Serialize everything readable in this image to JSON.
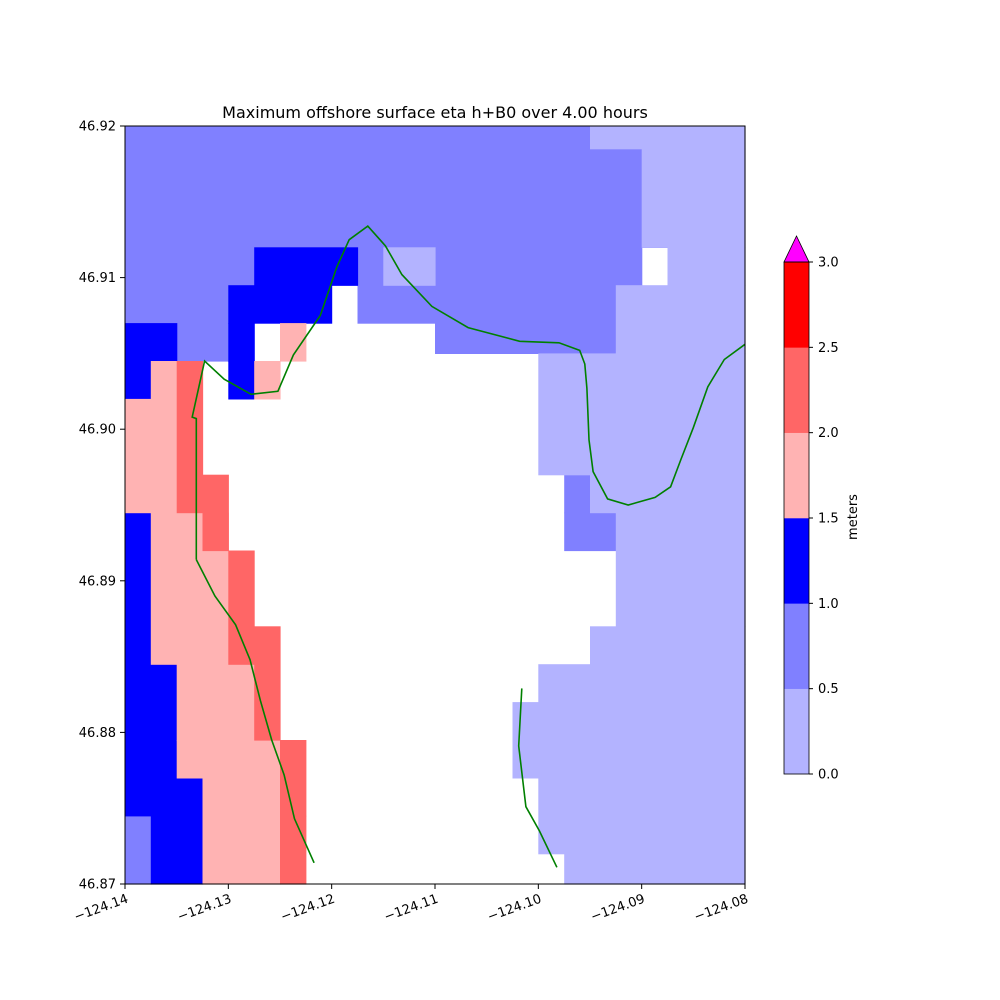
{
  "chart_data": {
    "type": "heatmap",
    "title": "Maximum offshore surface eta h+B0 over 4.00 hours",
    "xlabel": "",
    "ylabel": "",
    "xlim": [
      -124.14,
      -124.08
    ],
    "ylim": [
      46.87,
      46.92
    ],
    "x_ticks": [
      "−124.14",
      "−124.13",
      "−124.12",
      "−124.11",
      "−124.10",
      "−124.09",
      "−124.08"
    ],
    "y_ticks": [
      "46.87",
      "46.88",
      "46.89",
      "46.90",
      "46.91",
      "46.92"
    ],
    "grid": false,
    "colorbar": {
      "label": "meters",
      "ticks": [
        "0.0",
        "0.5",
        "1.0",
        "1.5",
        "2.0",
        "2.5",
        "3.0"
      ],
      "levels": [
        0.0,
        0.5,
        1.0,
        1.5,
        2.0,
        2.5,
        3.0
      ],
      "colors": [
        "#b3b3ff",
        "#8080ff",
        "#0000ff",
        "#ffb3b3",
        "#ff6666",
        "#ff0000"
      ],
      "extend_color": "#ff00ff",
      "extend": "max"
    },
    "coastline_color": "#008000",
    "region_levels": {
      "0": "0.0-0.5",
      "1": "0.5-1.0",
      "2": "1.0-1.5",
      "3": "1.5-2.0",
      "4": "2.0-2.5"
    },
    "regions": [
      {
        "level": 1,
        "rects": [
          [
            -124.14,
            46.9185,
            -124.095,
            46.92
          ],
          [
            -124.14,
            46.917,
            -124.09,
            46.9185
          ],
          [
            -124.14,
            46.9145,
            -124.09,
            46.917
          ],
          [
            -124.14,
            46.912,
            -124.0875,
            46.9145
          ],
          [
            -124.14,
            46.9095,
            -124.1275,
            46.912
          ],
          [
            -124.12,
            46.9095,
            -124.09,
            46.912
          ],
          [
            -124.14,
            46.907,
            -124.13,
            46.9095
          ],
          [
            -124.1175,
            46.907,
            -124.09,
            46.9095
          ],
          [
            -124.135,
            46.9045,
            -124.1275,
            46.907
          ],
          [
            -124.11,
            46.907,
            -124.0925,
            46.9095
          ],
          [
            -124.11,
            46.905,
            -124.0925,
            46.907
          ],
          [
            -124.0975,
            46.8945,
            -124.095,
            46.897
          ],
          [
            -124.0975,
            46.892,
            -124.0925,
            46.8945
          ],
          [
            -124.14,
            46.872,
            -124.1375,
            46.8745
          ],
          [
            -124.14,
            46.87,
            -124.1375,
            46.872
          ]
        ]
      },
      {
        "level": 2,
        "rects": [
          [
            -124.1275,
            46.9095,
            -124.1175,
            46.912
          ],
          [
            -124.13,
            46.907,
            -124.12,
            46.9095
          ],
          [
            -124.14,
            46.9045,
            -124.135,
            46.907
          ],
          [
            -124.13,
            46.9045,
            -124.1275,
            46.907
          ],
          [
            -124.14,
            46.902,
            -124.1375,
            46.9045
          ],
          [
            -124.13,
            46.902,
            -124.1275,
            46.9045
          ],
          [
            -124.14,
            46.8845,
            -124.1375,
            46.8945
          ],
          [
            -124.14,
            46.877,
            -124.135,
            46.8845
          ],
          [
            -124.14,
            46.8745,
            -124.1325,
            46.877
          ],
          [
            -124.1375,
            46.87,
            -124.1325,
            46.8745
          ]
        ]
      },
      {
        "level": 3,
        "rects": [
          [
            -124.1375,
            46.8945,
            -124.1325,
            46.9045
          ],
          [
            -124.14,
            46.8945,
            -124.135,
            46.902
          ],
          [
            -124.1375,
            46.8845,
            -124.13,
            46.8945
          ],
          [
            -124.135,
            46.8795,
            -124.1275,
            46.8845
          ],
          [
            -124.135,
            46.877,
            -124.125,
            46.8795
          ],
          [
            -124.1325,
            46.8745,
            -124.125,
            46.877
          ],
          [
            -124.1325,
            46.87,
            -124.125,
            46.8745
          ],
          [
            -124.1275,
            46.902,
            -124.125,
            46.9045
          ],
          [
            -124.125,
            46.9045,
            -124.1225,
            46.907
          ]
        ]
      },
      {
        "level": 4,
        "rects": [
          [
            -124.135,
            46.8945,
            -124.1325,
            46.9045
          ],
          [
            -124.1325,
            46.892,
            -124.13,
            46.897
          ],
          [
            -124.13,
            46.8845,
            -124.1275,
            46.892
          ],
          [
            -124.1275,
            46.8795,
            -124.125,
            46.887
          ],
          [
            -124.125,
            46.8745,
            -124.1225,
            46.8795
          ],
          [
            -124.125,
            46.87,
            -124.1225,
            46.8745
          ]
        ]
      },
      {
        "level": 0,
        "rects": [
          [
            -124.095,
            46.9185,
            -124.08,
            46.92
          ],
          [
            -124.09,
            46.912,
            -124.08,
            46.9185
          ],
          [
            -124.0875,
            46.9095,
            -124.08,
            46.912
          ],
          [
            -124.115,
            46.9095,
            -124.11,
            46.912
          ],
          [
            -124.0925,
            46.905,
            -124.08,
            46.9095
          ],
          [
            -124.1,
            46.897,
            -124.08,
            46.905
          ],
          [
            -124.095,
            46.8945,
            -124.08,
            46.897
          ],
          [
            -124.0925,
            46.887,
            -124.08,
            46.8945
          ],
          [
            -124.095,
            46.8845,
            -124.08,
            46.887
          ],
          [
            -124.1,
            46.882,
            -124.08,
            46.8845
          ],
          [
            -124.1025,
            46.877,
            -124.08,
            46.882
          ],
          [
            -124.1,
            46.872,
            -124.08,
            46.877
          ],
          [
            -124.0975,
            46.87,
            -124.08,
            46.872
          ]
        ]
      }
    ],
    "coastlines": [
      [
        [
          -124.1331,
          46.8914
        ],
        [
          -124.1331,
          46.9007
        ],
        [
          -124.1335,
          46.9008
        ],
        [
          -124.1323,
          46.9045
        ],
        [
          -124.1304,
          46.9033
        ],
        [
          -124.1278,
          46.9023
        ],
        [
          -124.1252,
          46.9025
        ],
        [
          -124.1237,
          46.9049
        ],
        [
          -124.1211,
          46.9075
        ],
        [
          -124.1195,
          46.9107
        ],
        [
          -124.1183,
          46.9125
        ],
        [
          -124.1165,
          46.9134
        ],
        [
          -124.1148,
          46.9121
        ],
        [
          -124.1132,
          46.9102
        ],
        [
          -124.1103,
          46.9081
        ],
        [
          -124.1068,
          46.9067
        ],
        [
          -124.1018,
          46.9058
        ],
        [
          -124.098,
          46.9057
        ],
        [
          -124.096,
          46.9052
        ],
        [
          -124.0955,
          46.9043
        ],
        [
          -124.0953,
          46.9027
        ],
        [
          -124.0951,
          46.8993
        ],
        [
          -124.0947,
          46.8972
        ],
        [
          -124.0933,
          46.8954
        ],
        [
          -124.0913,
          46.895
        ],
        [
          -124.0887,
          46.8955
        ],
        [
          -124.0872,
          46.8962
        ],
        [
          -124.0862,
          46.898
        ],
        [
          -124.085,
          46.9001
        ],
        [
          -124.0836,
          46.9028
        ],
        [
          -124.082,
          46.9046
        ],
        [
          -124.08,
          46.9056
        ]
      ],
      [
        [
          -124.1331,
          46.8914
        ],
        [
          -124.1313,
          46.889
        ],
        [
          -124.1293,
          46.8871
        ],
        [
          -124.1279,
          46.8848
        ],
        [
          -124.1269,
          46.8821
        ],
        [
          -124.1258,
          46.8795
        ],
        [
          -124.1246,
          46.8772
        ],
        [
          -124.1236,
          46.8743
        ],
        [
          -124.1217,
          46.8714
        ]
      ],
      [
        [
          -124.1016,
          46.8829
        ],
        [
          -124.1019,
          46.8791
        ],
        [
          -124.1012,
          46.8751
        ],
        [
          -124.0999,
          46.8735
        ],
        [
          -124.0982,
          46.8711
        ]
      ]
    ]
  }
}
